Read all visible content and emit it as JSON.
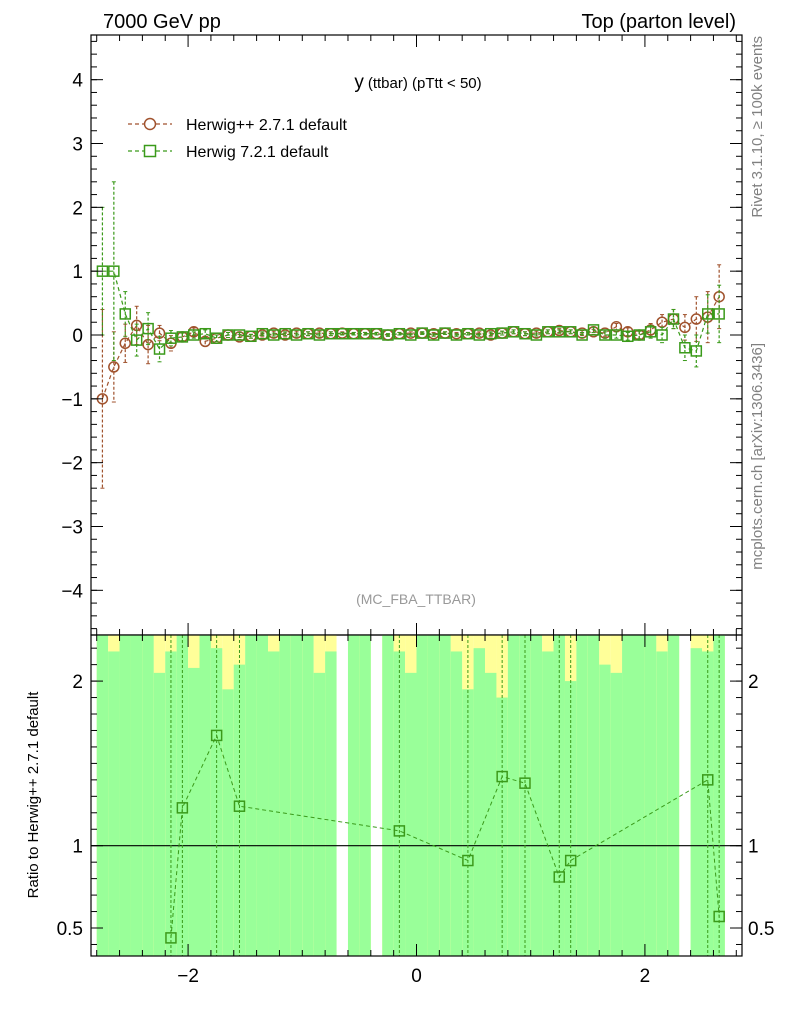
{
  "header": {
    "left": "7000 GeV pp",
    "right": "Top (parton level)"
  },
  "side_labels": {
    "rivet": "Rivet 3.1.10, ≥ 100k events",
    "mcplots": "mcplots.cern.ch [arXiv:1306.3436]"
  },
  "chart_data": [
    {
      "type": "scatter",
      "title": "y (ttbar) (pTtt < 50)",
      "title_main": "y",
      "title_sub": "(ttbar)  (pTtt < 50)",
      "watermark": "(MC_FBA_TTBAR)",
      "xlim": [
        -2.85,
        2.85
      ],
      "ylim": [
        -4.7,
        4.7
      ],
      "y_ticks": [
        -4,
        -3,
        -2,
        -1,
        0,
        1,
        2,
        3,
        4
      ],
      "y_tick_labels": [
        "−4",
        "−3",
        "−2",
        "−1",
        "0",
        "1",
        "2",
        "3",
        "4"
      ],
      "legend_position": "top-left",
      "series": [
        {
          "name": "Herwig++ 2.7.1 default",
          "color": "#a0522d",
          "marker": "circle",
          "x": [
            -2.75,
            -2.65,
            -2.55,
            -2.45,
            -2.35,
            -2.25,
            -2.15,
            -2.05,
            -1.95,
            -1.85,
            -1.75,
            -1.65,
            -1.55,
            -1.45,
            -1.35,
            -1.25,
            -1.15,
            -1.05,
            -0.95,
            -0.85,
            -0.75,
            -0.65,
            -0.55,
            -0.45,
            -0.35,
            -0.25,
            -0.15,
            -0.05,
            0.05,
            0.15,
            0.25,
            0.35,
            0.45,
            0.55,
            0.65,
            0.75,
            0.85,
            0.95,
            1.05,
            1.15,
            1.25,
            1.35,
            1.45,
            1.55,
            1.65,
            1.75,
            1.85,
            1.95,
            2.05,
            2.15,
            2.25,
            2.35,
            2.45,
            2.55,
            2.65
          ],
          "y": [
            -1.0,
            -0.5,
            -0.13,
            0.15,
            -0.15,
            0.03,
            -0.13,
            -0.03,
            0.05,
            -0.1,
            -0.05,
            0.0,
            -0.03,
            -0.02,
            0.0,
            0.03,
            0.0,
            0.03,
            0.02,
            0.03,
            0.02,
            0.03,
            0.02,
            0.02,
            0.02,
            0.0,
            0.02,
            0.03,
            0.03,
            0.02,
            0.03,
            0.02,
            0.02,
            0.03,
            0.0,
            0.03,
            0.05,
            0.02,
            0.03,
            0.05,
            0.07,
            0.05,
            0.03,
            0.05,
            0.03,
            0.13,
            0.05,
            0.0,
            0.08,
            0.2,
            0.25,
            0.12,
            0.25,
            0.28,
            0.6
          ],
          "err": [
            1.4,
            0.55,
            0.3,
            0.3,
            0.3,
            0.12,
            0.12,
            0.06,
            0.06,
            0.08,
            0.05,
            0.04,
            0.04,
            0.03,
            0.03,
            0.03,
            0.03,
            0.03,
            0.03,
            0.03,
            0.03,
            0.02,
            0.02,
            0.02,
            0.02,
            0.02,
            0.02,
            0.02,
            0.02,
            0.02,
            0.02,
            0.02,
            0.02,
            0.02,
            0.03,
            0.03,
            0.03,
            0.03,
            0.03,
            0.03,
            0.03,
            0.03,
            0.04,
            0.04,
            0.05,
            0.05,
            0.06,
            0.06,
            0.1,
            0.12,
            0.15,
            0.2,
            0.35,
            0.4,
            0.5
          ]
        },
        {
          "name": "Herwig 7.2.1 default",
          "color": "#3a9a1a",
          "marker": "square",
          "x": [
            -2.75,
            -2.65,
            -2.55,
            -2.45,
            -2.35,
            -2.25,
            -2.15,
            -2.05,
            -1.95,
            -1.85,
            -1.75,
            -1.65,
            -1.55,
            -1.45,
            -1.35,
            -1.25,
            -1.15,
            -1.05,
            -0.95,
            -0.85,
            -0.75,
            -0.65,
            -0.55,
            -0.45,
            -0.35,
            -0.25,
            -0.15,
            -0.05,
            0.05,
            0.15,
            0.25,
            0.35,
            0.45,
            0.55,
            0.65,
            0.75,
            0.85,
            0.95,
            1.05,
            1.15,
            1.25,
            1.35,
            1.45,
            1.55,
            1.65,
            1.75,
            1.85,
            1.95,
            2.05,
            2.15,
            2.25,
            2.35,
            2.45,
            2.55,
            2.65
          ],
          "y": [
            1.0,
            1.0,
            0.33,
            -0.08,
            0.1,
            -0.22,
            -0.05,
            -0.03,
            0.0,
            0.02,
            -0.05,
            0.0,
            0.0,
            -0.02,
            0.02,
            0.0,
            0.02,
            0.0,
            0.02,
            0.0,
            0.02,
            0.02,
            0.02,
            0.02,
            0.02,
            0.0,
            0.02,
            0.0,
            0.03,
            0.0,
            0.03,
            0.0,
            0.02,
            0.0,
            0.02,
            0.03,
            0.05,
            0.02,
            0.0,
            0.05,
            0.05,
            0.05,
            0.0,
            0.08,
            0.0,
            0.0,
            -0.02,
            0.0,
            0.05,
            0.0,
            0.25,
            -0.2,
            -0.25,
            0.33,
            0.33
          ],
          "err": [
            1.0,
            1.4,
            0.35,
            0.25,
            0.25,
            0.2,
            0.12,
            0.06,
            0.05,
            0.06,
            0.05,
            0.04,
            0.04,
            0.03,
            0.03,
            0.03,
            0.03,
            0.03,
            0.03,
            0.03,
            0.03,
            0.02,
            0.02,
            0.02,
            0.02,
            0.02,
            0.02,
            0.02,
            0.02,
            0.02,
            0.02,
            0.02,
            0.02,
            0.02,
            0.03,
            0.03,
            0.03,
            0.03,
            0.03,
            0.03,
            0.03,
            0.03,
            0.04,
            0.04,
            0.05,
            0.05,
            0.06,
            0.06,
            0.1,
            0.12,
            0.15,
            0.2,
            0.25,
            0.3,
            0.45
          ]
        }
      ]
    },
    {
      "type": "scatter",
      "ylabel": "Ratio to Herwig++ 2.7.1 default",
      "xlim": [
        -2.85,
        2.85
      ],
      "ylim": [
        0.33,
        2.28
      ],
      "x_ticks": [
        -2,
        0,
        2
      ],
      "x_tick_labels": [
        "−2",
        "0",
        "2"
      ],
      "y_ticks": [
        0.5,
        1,
        2
      ],
      "y_tick_labels": [
        "0.5",
        "1",
        "2"
      ],
      "reference_line": 1,
      "band_colors": {
        "stat": "#99ff99",
        "total": "#ffff99"
      },
      "bands": {
        "x_low": [
          -2.8,
          -2.7,
          -2.6,
          -2.5,
          -2.4,
          -2.3,
          -2.2,
          -2.1,
          -2.0,
          -1.9,
          -1.8,
          -1.7,
          -1.6,
          -1.5,
          -1.4,
          -1.3,
          -1.2,
          -1.1,
          -1.0,
          -0.9,
          -0.8,
          -0.7,
          -0.6,
          -0.5,
          -0.4,
          -0.3,
          -0.2,
          -0.1,
          0.0,
          0.1,
          0.2,
          0.3,
          0.4,
          0.5,
          0.6,
          0.7,
          0.8,
          0.9,
          1.0,
          1.1,
          1.2,
          1.3,
          1.4,
          1.5,
          1.6,
          1.7,
          1.8,
          1.9,
          2.0,
          2.1,
          2.2,
          2.3,
          2.4,
          2.5,
          2.6
        ],
        "x_high": [
          -2.7,
          -2.6,
          -2.5,
          -2.4,
          -2.3,
          -2.2,
          -2.1,
          -2.0,
          -1.9,
          -1.8,
          -1.7,
          -1.6,
          -1.5,
          -1.4,
          -1.3,
          -1.2,
          -1.1,
          -1.0,
          -0.9,
          -0.8,
          -0.7,
          -0.6,
          -0.5,
          -0.4,
          -0.3,
          -0.2,
          -0.1,
          0.0,
          0.1,
          0.2,
          0.3,
          0.4,
          0.5,
          0.6,
          0.7,
          0.8,
          0.9,
          1.0,
          1.1,
          1.2,
          1.3,
          1.4,
          1.5,
          1.6,
          1.7,
          1.8,
          1.9,
          2.0,
          2.1,
          2.2,
          2.3,
          2.4,
          2.5,
          2.6,
          2.7
        ],
        "stat_low": [
          0.33,
          0.33,
          0.33,
          0.33,
          0.33,
          0.33,
          0.33,
          0.33,
          0.33,
          0.33,
          0.33,
          0.33,
          0.33,
          0.33,
          0.33,
          0.33,
          0.33,
          0.33,
          0.33,
          0.33,
          0.33,
          0.0,
          0.33,
          0.33,
          0.0,
          0.33,
          0.33,
          0.33,
          0.33,
          0.33,
          0.33,
          0.33,
          0.33,
          0.33,
          0.33,
          0.33,
          0.33,
          0.33,
          0.33,
          0.33,
          0.33,
          0.33,
          0.33,
          0.33,
          0.33,
          0.33,
          0.33,
          0.33,
          0.33,
          0.33,
          0.33,
          0.0,
          0.33,
          0.33,
          0.33
        ],
        "stat_high": [
          2.28,
          2.28,
          2.28,
          2.28,
          2.28,
          2.28,
          2.28,
          2.28,
          2.28,
          2.28,
          2.28,
          2.28,
          2.28,
          2.28,
          2.28,
          2.28,
          2.28,
          2.28,
          2.28,
          2.28,
          2.28,
          0.0,
          2.28,
          2.28,
          0.0,
          2.28,
          2.28,
          2.28,
          2.28,
          2.28,
          2.28,
          2.28,
          2.28,
          2.28,
          2.28,
          2.28,
          2.28,
          2.28,
          2.28,
          2.28,
          2.28,
          2.28,
          2.28,
          2.28,
          2.28,
          2.28,
          2.28,
          2.28,
          2.28,
          2.28,
          2.28,
          0.0,
          2.28,
          2.28,
          2.28
        ],
        "total_low": [
          0.33,
          0.33,
          0.33,
          0.33,
          0.33,
          0.33,
          0.33,
          0.33,
          0.33,
          0.33,
          0.33,
          0.33,
          0.33,
          0.33,
          0.33,
          0.33,
          0.33,
          0.33,
          0.33,
          0.33,
          0.33,
          0.0,
          0.33,
          0.33,
          0.0,
          0.33,
          0.33,
          0.33,
          0.33,
          0.33,
          0.33,
          0.33,
          0.33,
          0.33,
          0.33,
          0.33,
          0.33,
          0.33,
          0.33,
          0.33,
          0.33,
          0.33,
          0.33,
          0.33,
          0.33,
          0.33,
          0.33,
          0.33,
          0.33,
          0.33,
          0.33,
          0.0,
          0.33,
          0.33,
          0.33
        ],
        "total_high": [
          2.28,
          2.28,
          2.28,
          2.28,
          2.28,
          2.28,
          2.28,
          2.28,
          2.28,
          2.28,
          2.28,
          2.28,
          2.28,
          2.28,
          2.28,
          2.28,
          2.28,
          2.28,
          2.28,
          2.28,
          2.28,
          0.0,
          2.28,
          2.28,
          0.0,
          2.28,
          2.28,
          2.28,
          2.28,
          2.28,
          2.28,
          2.28,
          2.28,
          2.28,
          2.28,
          2.28,
          2.28,
          2.28,
          2.28,
          2.28,
          2.28,
          2.28,
          2.28,
          2.28,
          2.28,
          2.28,
          2.28,
          2.28,
          2.28,
          2.28,
          2.28,
          0.0,
          2.28,
          2.28,
          2.28
        ],
        "stat_top": [
          2.28,
          2.18,
          2.28,
          2.28,
          2.28,
          2.05,
          2.18,
          2.28,
          2.08,
          2.28,
          2.2,
          1.95,
          2.1,
          2.28,
          2.28,
          2.18,
          2.28,
          2.28,
          2.28,
          2.05,
          2.18,
          0.0,
          2.28,
          2.28,
          0.0,
          2.28,
          2.18,
          2.05,
          2.28,
          2.28,
          2.28,
          2.18,
          1.95,
          2.2,
          2.05,
          1.9,
          2.28,
          2.28,
          2.28,
          2.18,
          2.28,
          2.0,
          2.28,
          2.28,
          2.1,
          2.05,
          2.28,
          2.28,
          2.28,
          2.18,
          2.28,
          0.0,
          2.2,
          2.18,
          2.28
        ]
      },
      "series": [
        {
          "name": "Herwig 7.2.1 default",
          "color": "#3a9a1a",
          "marker": "square",
          "x": [
            -2.15,
            -2.05,
            -1.75,
            -1.55,
            -0.15,
            0.45,
            0.75,
            0.95,
            1.25,
            1.35,
            2.55,
            2.65
          ],
          "y": [
            0.44,
            1.23,
            1.67,
            1.24,
            1.09,
            0.91,
            1.42,
            1.38,
            0.81,
            0.91,
            1.4,
            0.57
          ]
        }
      ]
    }
  ]
}
